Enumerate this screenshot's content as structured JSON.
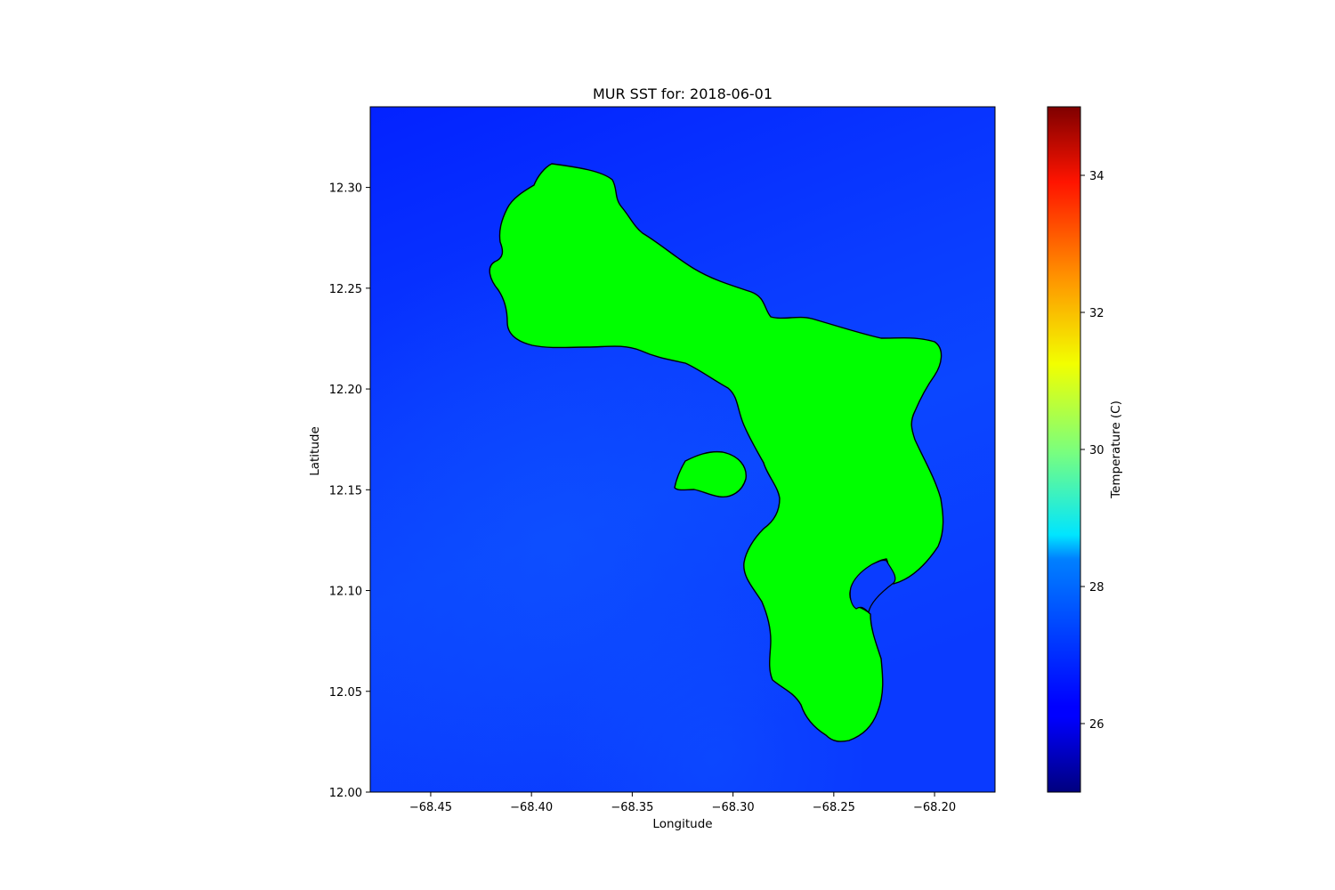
{
  "title": "MUR SST for: 2018-06-01",
  "x_axis": {
    "label": "Longitude",
    "range": [
      -68.48,
      -68.17
    ],
    "ticks": [
      -68.45,
      -68.4,
      -68.35,
      -68.3,
      -68.25,
      -68.2
    ],
    "tick_labels": [
      "−68.45",
      "−68.40",
      "−68.35",
      "−68.30",
      "−68.25",
      "−68.20"
    ]
  },
  "y_axis": {
    "label": "Latitude",
    "range": [
      12.0,
      12.34
    ],
    "ticks": [
      12.0,
      12.05,
      12.1,
      12.15,
      12.2,
      12.25,
      12.3
    ],
    "tick_labels": [
      "12.00",
      "12.05",
      "12.10",
      "12.15",
      "12.20",
      "12.25",
      "12.30"
    ]
  },
  "colorbar": {
    "label": "Temperature (C)",
    "range": [
      25,
      35
    ],
    "colormap": "jet",
    "ticks": [
      26,
      28,
      30,
      32,
      34
    ],
    "tick_labels": [
      "26",
      "28",
      "30",
      "32",
      "34"
    ]
  },
  "colors": {
    "land": "#00ff00",
    "coastline": "#000000",
    "sea_surface_typical": "#0b2eff"
  },
  "chart_data": {
    "type": "heatmap",
    "variable": "sea surface temperature",
    "units": "C",
    "date": "2018-06-01",
    "approx_sea_temperature_range": [
      26.2,
      26.9
    ],
    "land_mask": [
      "Bonaire",
      "Klein Bonaire"
    ]
  }
}
